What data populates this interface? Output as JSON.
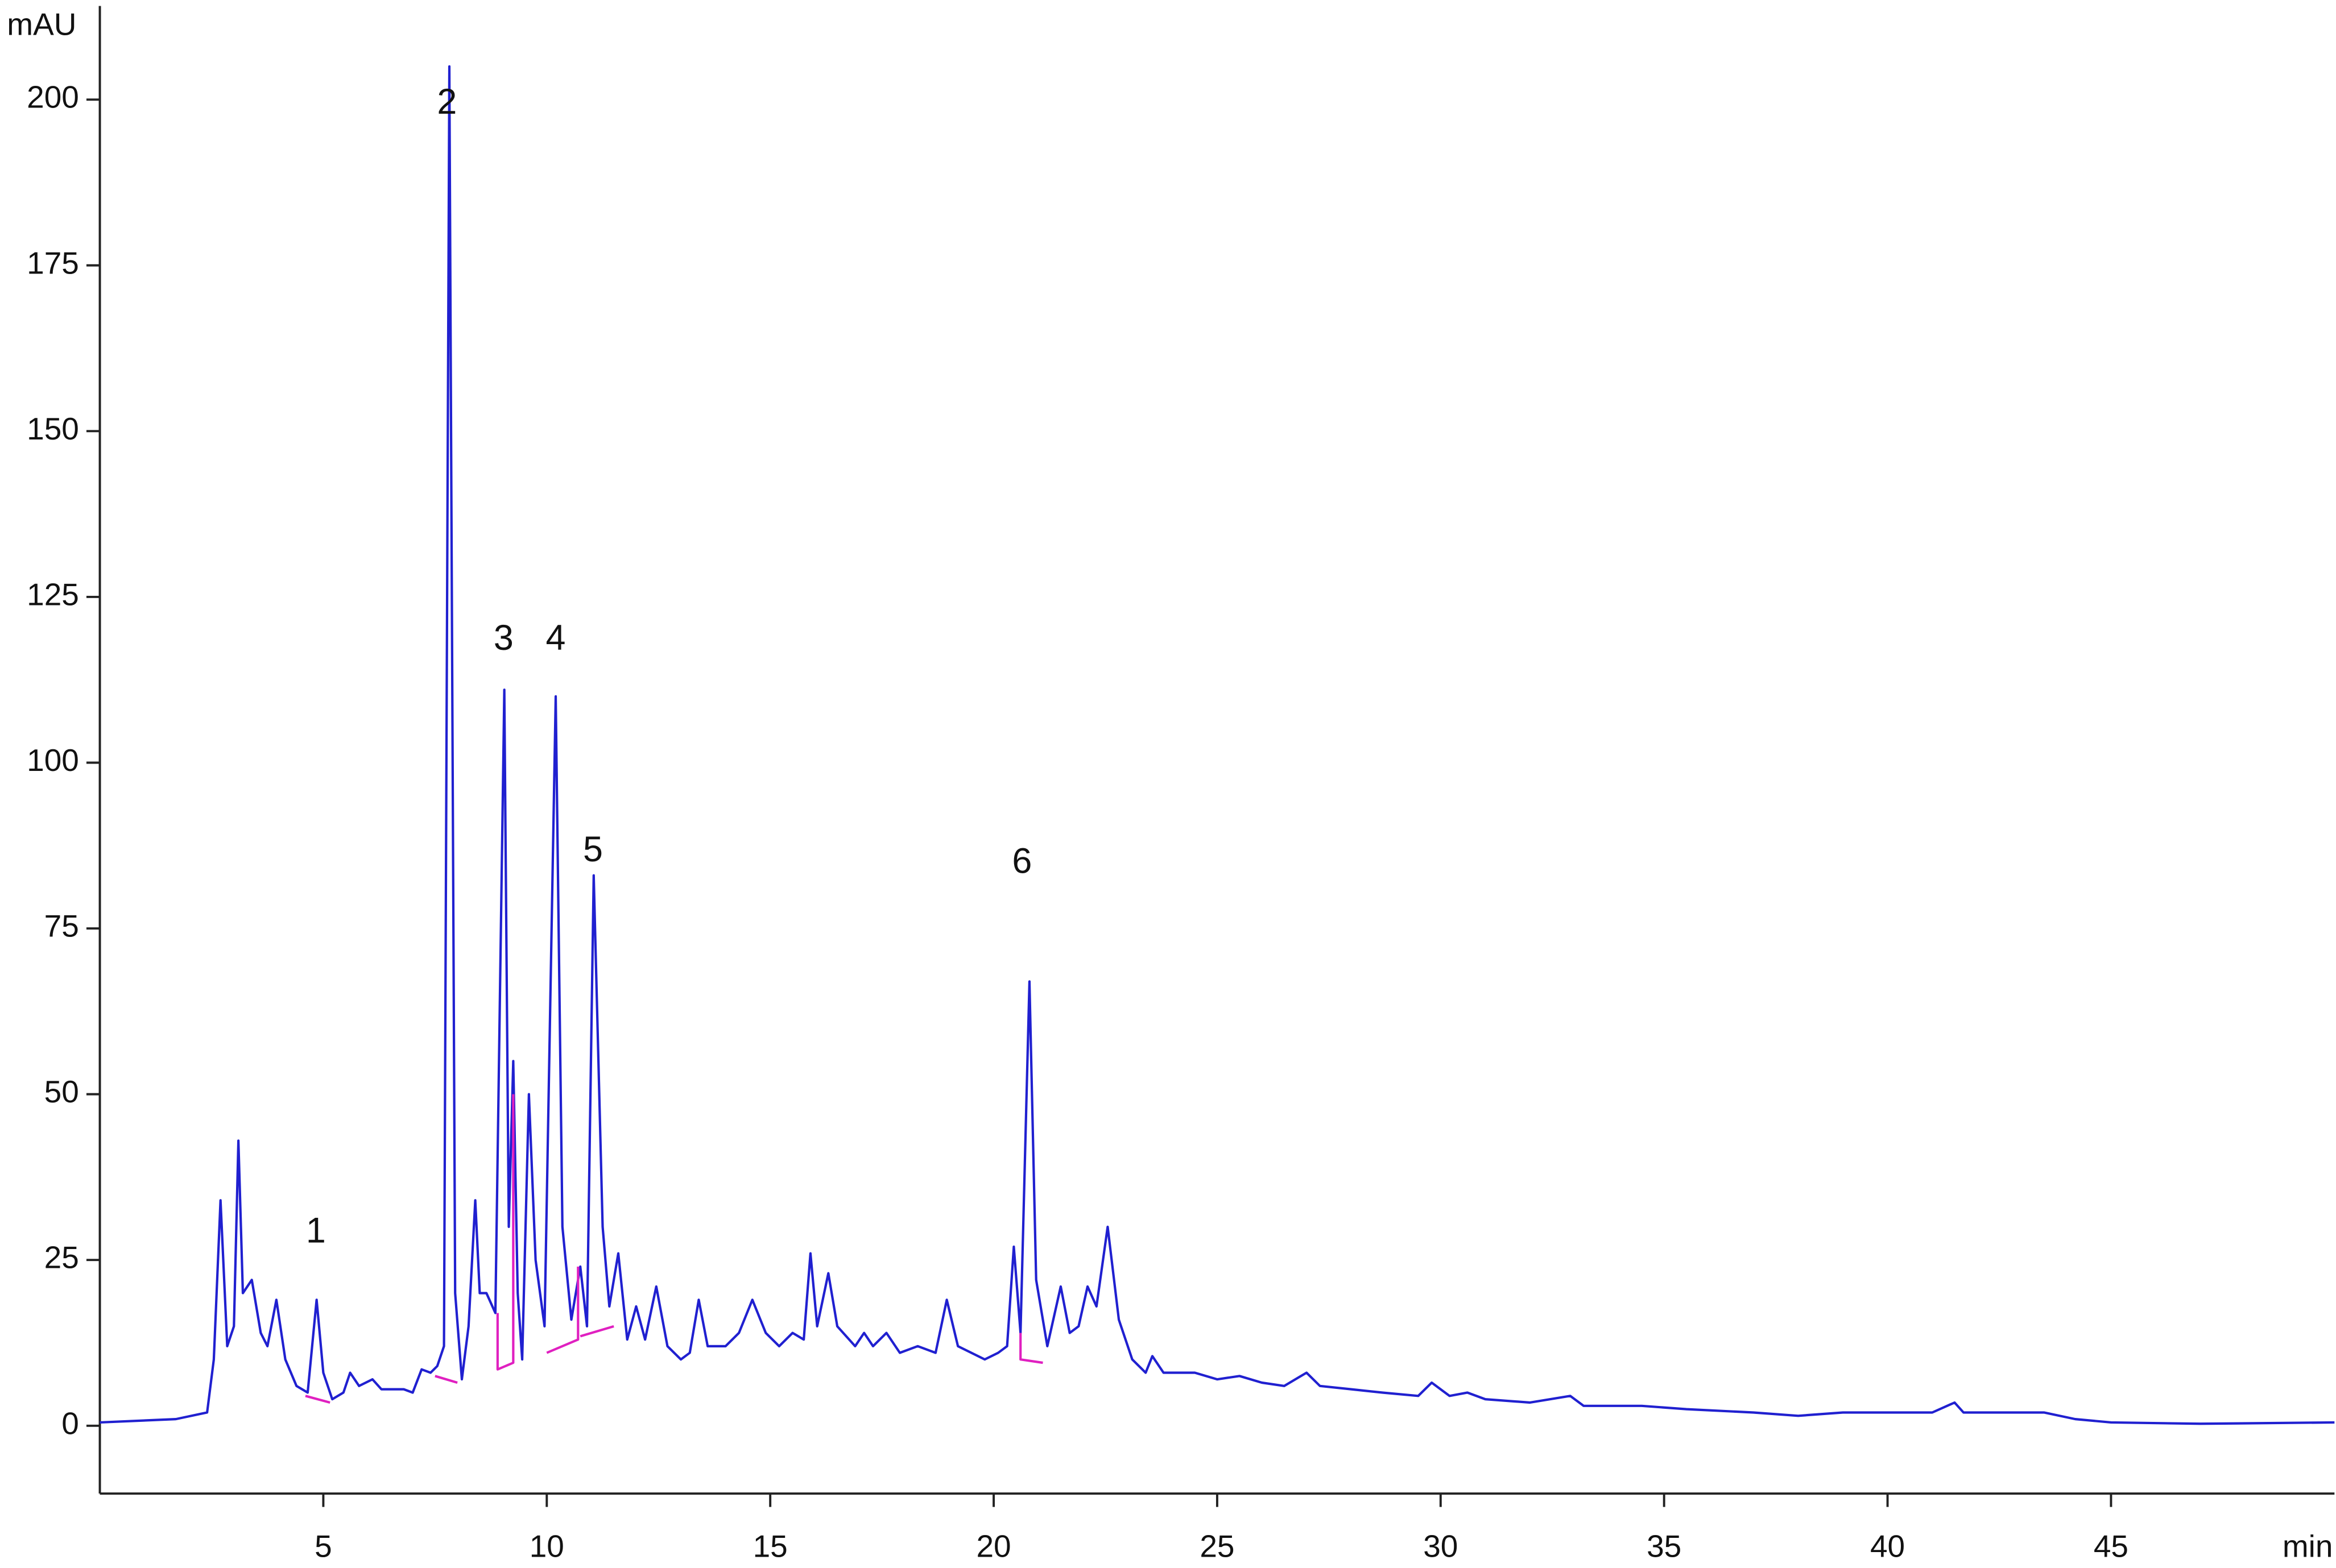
{
  "chart_data": {
    "type": "line",
    "ylabel": "mAU",
    "xlabel": "min",
    "xlim": [
      0,
      50
    ],
    "ylim": [
      -10,
      213
    ],
    "xticks": [
      5,
      10,
      15,
      20,
      25,
      30,
      35,
      40,
      45
    ],
    "yticks": [
      0,
      25,
      50,
      75,
      100,
      125,
      150,
      175,
      200
    ],
    "annotations": [
      "1",
      "2",
      "3",
      "4",
      "5",
      "6"
    ],
    "series": [
      {
        "color": "#2020d0",
        "x": [
          0,
          1.7,
          2.4,
          2.55,
          2.7,
          2.85,
          3.0,
          3.1,
          3.2,
          3.4,
          3.6,
          3.75,
          3.95,
          4.15,
          4.4,
          4.65,
          4.85,
          5.0,
          5.2,
          5.45,
          5.6,
          5.8,
          6.1,
          6.3,
          6.8,
          7.0,
          7.2,
          7.4,
          7.55,
          7.7,
          7.82,
          7.95,
          8.1,
          8.25,
          8.4,
          8.5,
          8.65,
          8.85,
          9.05,
          9.15,
          9.25,
          9.35,
          9.45,
          9.6,
          9.75,
          9.95,
          10.2,
          10.35,
          10.55,
          10.75,
          10.9,
          11.05,
          11.25,
          11.4,
          11.6,
          11.8,
          12.0,
          12.2,
          12.45,
          12.7,
          13.0,
          13.2,
          13.4,
          13.6,
          14.0,
          14.3,
          14.6,
          14.9,
          15.2,
          15.5,
          15.75,
          15.9,
          16.05,
          16.3,
          16.5,
          16.9,
          17.1,
          17.3,
          17.6,
          17.9,
          18.3,
          18.7,
          18.95,
          19.2,
          19.5,
          19.8,
          20.1,
          20.3,
          20.45,
          20.6,
          20.8,
          20.95,
          21.2,
          21.5,
          21.7,
          21.9,
          22.1,
          22.3,
          22.55,
          22.8,
          23.1,
          23.4,
          23.55,
          23.8,
          24.5,
          25.0,
          25.5,
          26.0,
          26.5,
          27.0,
          27.3,
          28.0,
          28.7,
          29.5,
          29.8,
          30.2,
          30.6,
          31.0,
          32.0,
          32.9,
          33.2,
          34.5,
          35.5,
          37,
          38,
          39,
          40,
          41,
          41.5,
          41.7,
          43,
          43.5,
          44.2,
          45,
          47,
          50
        ],
        "values": [
          0.5,
          1,
          2,
          10,
          34,
          12,
          15,
          43,
          20,
          22,
          14,
          12,
          19,
          10,
          6,
          5,
          19,
          8,
          4,
          5,
          8,
          6,
          7,
          5.5,
          5.5,
          5,
          8.5,
          8,
          9,
          12,
          205,
          20,
          7,
          15,
          34,
          20,
          20,
          17,
          111,
          30,
          55,
          20,
          10,
          50,
          25,
          15,
          110,
          30,
          16,
          24,
          15,
          83,
          30,
          18,
          26,
          13,
          18,
          13,
          21,
          12,
          10,
          11,
          19,
          12,
          12,
          14,
          19,
          14,
          12,
          14,
          13,
          26,
          15,
          23,
          15,
          12,
          14,
          12,
          14,
          11,
          12,
          11,
          19,
          12,
          11,
          10,
          11,
          12,
          27,
          14,
          67,
          22,
          12,
          21,
          14,
          15,
          21,
          18,
          30,
          16,
          10,
          8,
          10.5,
          8,
          8,
          7,
          7.5,
          6.5,
          6,
          8,
          6,
          5.5,
          5,
          4.5,
          6.5,
          4.5,
          5,
          4,
          3.5,
          4.5,
          3,
          3,
          2.5,
          2,
          1.5,
          2,
          2,
          2,
          3.5,
          2,
          2,
          2,
          1,
          0.5,
          0.3,
          0.5
        ]
      },
      {
        "color": "#e020c0",
        "x": [
          4.6,
          5.15,
          null,
          7.5,
          8.0,
          null,
          8.9,
          8.9,
          9.25,
          9.25,
          null,
          10.0,
          10.7,
          10.7,
          null,
          10.75,
          11.5,
          null,
          20.6,
          20.6,
          21.1
        ],
        "values": [
          4.5,
          3.5,
          null,
          7.5,
          6.5,
          null,
          17,
          8.5,
          9.5,
          50,
          null,
          11,
          13,
          24,
          null,
          13.5,
          15,
          null,
          14,
          10,
          9.5
        ]
      }
    ]
  }
}
